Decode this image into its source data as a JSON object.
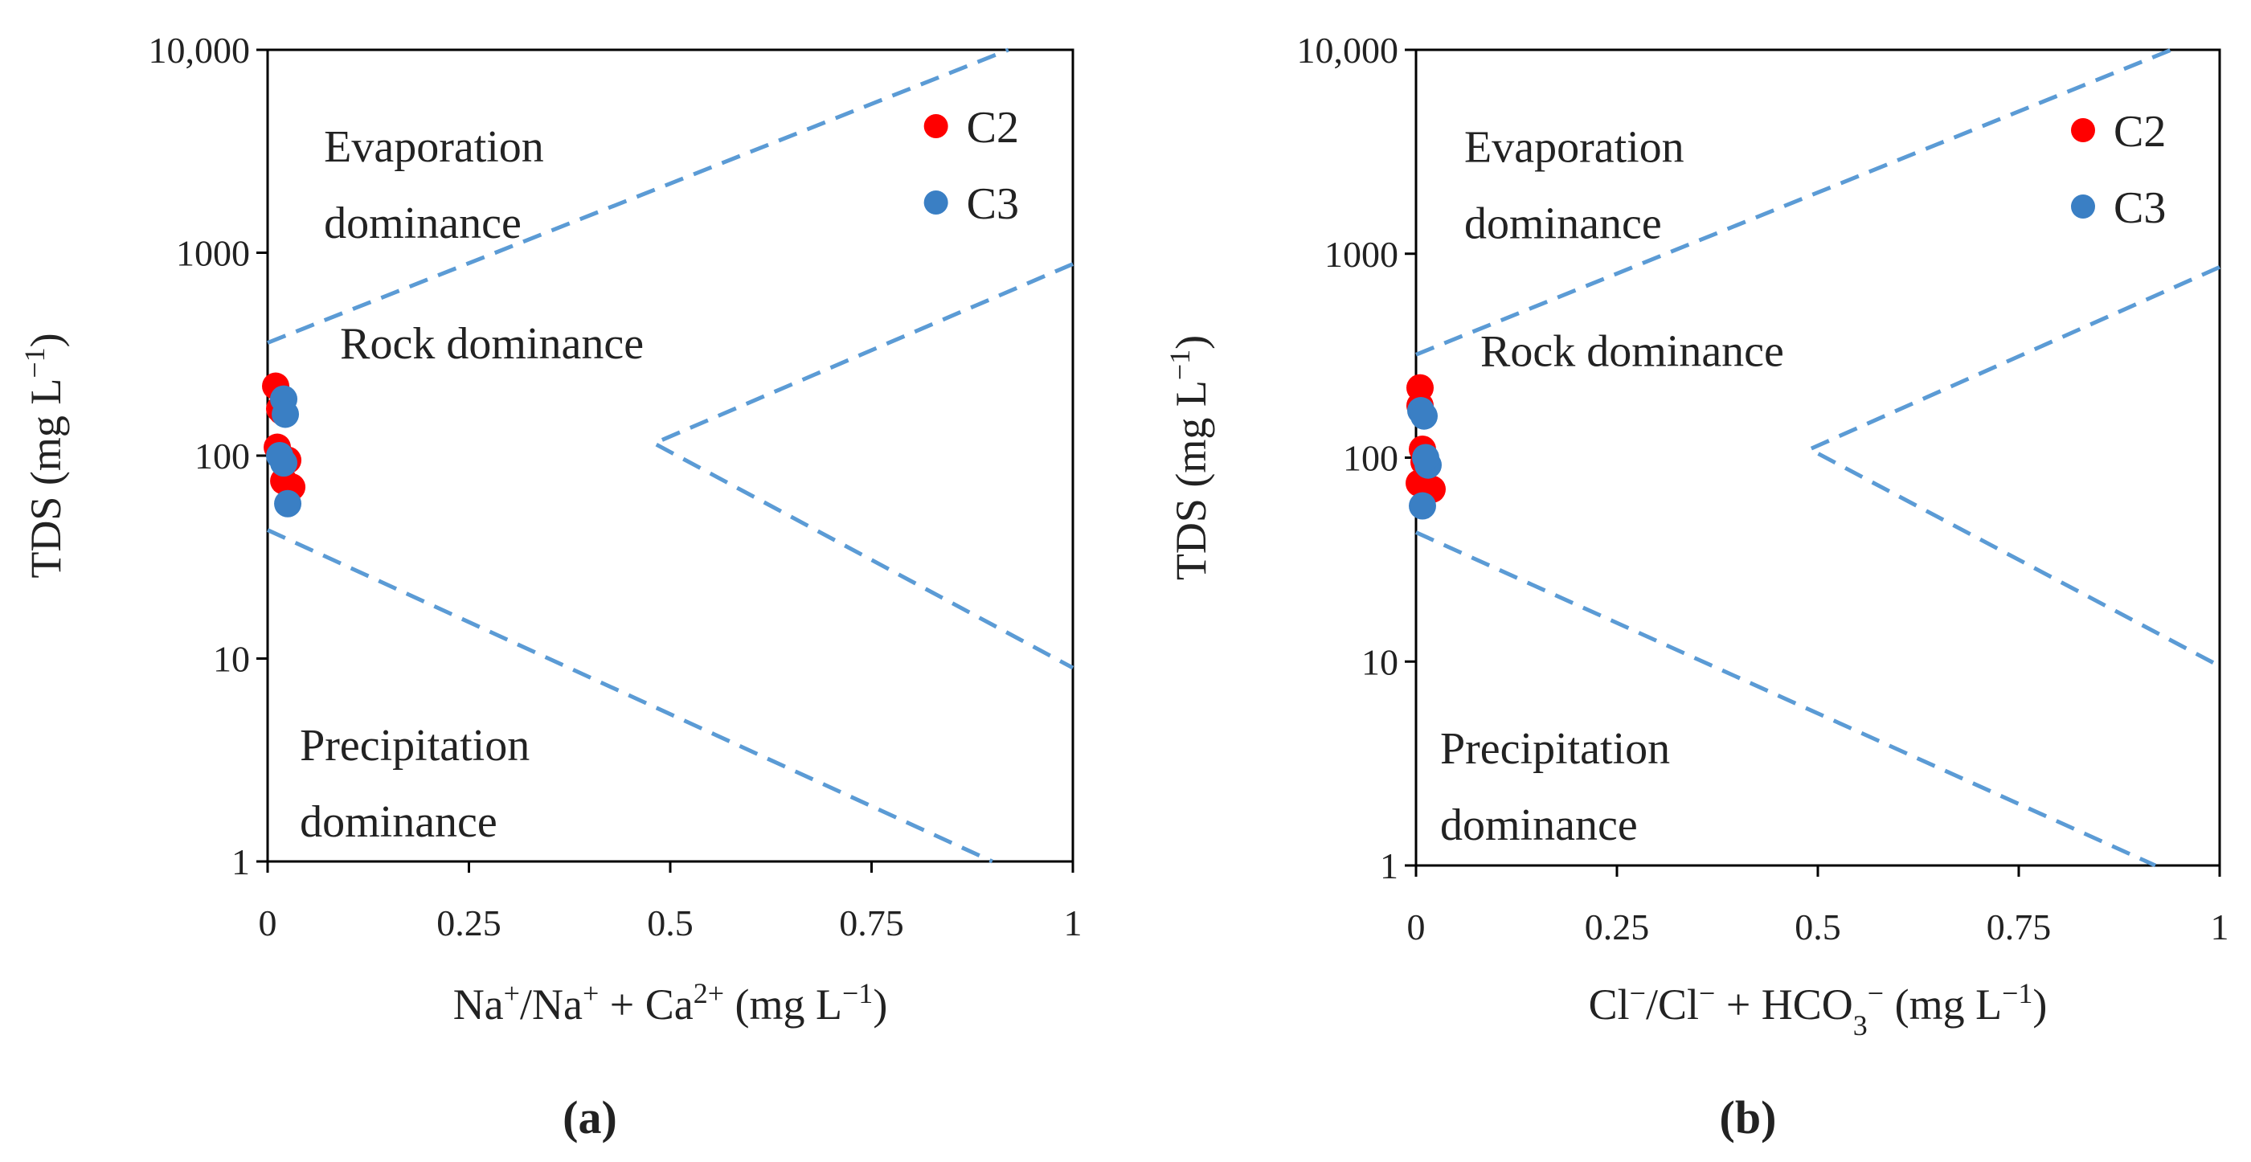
{
  "figure": {
    "colors": {
      "c2": "#ff0000",
      "c3": "#3a7fc4",
      "boundary": "#5b9bd5",
      "axis": "#000000"
    }
  },
  "chart_data": [
    {
      "type": "scatter",
      "panel_label": "(a)",
      "xlabel": {
        "pre": "Na",
        "sup1": "+",
        "mid": "/Na",
        "sup2": "+",
        "mid2": " + Ca",
        "sup3": "2+",
        "unit": " (mg L",
        "unit_sup": "−1",
        "close": ")"
      },
      "ylabel": {
        "text": "TDS (mg L",
        "sup": "−1",
        "close": ")"
      },
      "x_range": [
        0,
        1
      ],
      "y_range": [
        1,
        10000
      ],
      "y_scale": "log",
      "x_ticks": [
        "0",
        "0.25",
        "0.5",
        "0.75",
        "1"
      ],
      "x_tick_values": [
        0,
        0.25,
        0.5,
        0.75,
        1
      ],
      "y_ticks": [
        "1",
        "10",
        "100",
        "1000",
        "10,000"
      ],
      "y_tick_values": [
        1,
        10,
        100,
        1000,
        10000
      ],
      "regions": [
        {
          "line1": "Evaporation",
          "line2": "dominance",
          "x": 0.07,
          "y_log": 3.45
        },
        {
          "line1": "Rock dominance",
          "line2": "",
          "x": 0.09,
          "y_log": 2.48
        },
        {
          "line1": "Precipitation",
          "line2": "dominance",
          "x": 0.04,
          "y_log": 0.5
        }
      ],
      "boundaries": [
        {
          "name": "upper-boundary",
          "points": [
            [
              0,
              360
            ],
            [
              0.92,
              10000
            ]
          ]
        },
        {
          "name": "lower-boundary",
          "points": [
            [
              0,
              43
            ],
            [
              0.9,
              1
            ]
          ]
        },
        {
          "name": "rock-right-boundary",
          "points": [
            [
              1,
              880
            ],
            [
              0.48,
              115
            ],
            [
              1,
              9
            ]
          ]
        }
      ],
      "series": [
        {
          "name": "C2",
          "color": "#ff0000",
          "points": [
            [
              0.01,
              220
            ],
            [
              0.015,
              170
            ],
            [
              0.012,
              110
            ],
            [
              0.02,
              75
            ],
            [
              0.03,
              70
            ],
            [
              0.025,
              95
            ],
            [
              0.018,
              165
            ]
          ]
        },
        {
          "name": "C3",
          "color": "#3a7fc4",
          "points": [
            [
              0.02,
              190
            ],
            [
              0.022,
              160
            ],
            [
              0.015,
              100
            ],
            [
              0.02,
              92
            ],
            [
              0.025,
              58
            ]
          ]
        }
      ],
      "legend": [
        "C2",
        "C3"
      ]
    },
    {
      "type": "scatter",
      "panel_label": "(b)",
      "xlabel": {
        "pre": "Cl",
        "sup1": "−",
        "mid": "/Cl",
        "sup2": "−",
        "mid2": " + HCO",
        "sub": "3",
        "sup3": "−",
        "unit": " (mg L",
        "unit_sup": "−1",
        "close": ")"
      },
      "ylabel": {
        "text": "TDS (mg L",
        "sup": "−1",
        "close": ")"
      },
      "x_range": [
        0,
        1
      ],
      "y_range": [
        1,
        10000
      ],
      "y_scale": "log",
      "x_ticks": [
        "0",
        "0.25",
        "0.5",
        "0.75",
        "1"
      ],
      "x_tick_values": [
        0,
        0.25,
        0.5,
        0.75,
        1
      ],
      "y_ticks": [
        "1",
        "10",
        "100",
        "1000",
        "10,000"
      ],
      "y_tick_values": [
        1,
        10,
        100,
        1000,
        10000
      ],
      "regions": [
        {
          "line1": "Evaporation",
          "line2": "dominance",
          "x": 0.06,
          "y_log": 3.45
        },
        {
          "line1": "Rock dominance",
          "line2": "",
          "x": 0.08,
          "y_log": 2.45
        },
        {
          "line1": "Precipitation",
          "line2": "dominance",
          "x": 0.03,
          "y_log": 0.5
        }
      ],
      "boundaries": [
        {
          "name": "upper-boundary",
          "points": [
            [
              0,
              320
            ],
            [
              0.94,
              10000
            ]
          ]
        },
        {
          "name": "lower-boundary",
          "points": [
            [
              0,
              43
            ],
            [
              0.92,
              1
            ]
          ]
        },
        {
          "name": "rock-right-boundary",
          "points": [
            [
              1,
              860
            ],
            [
              0.49,
              110
            ],
            [
              1,
              9.5
            ]
          ]
        }
      ],
      "series": [
        {
          "name": "C2",
          "color": "#ff0000",
          "points": [
            [
              0.005,
              220
            ],
            [
              0.005,
              180
            ],
            [
              0.008,
              110
            ],
            [
              0.004,
              75
            ],
            [
              0.02,
              70
            ],
            [
              0.01,
              95
            ]
          ]
        },
        {
          "name": "C3",
          "color": "#3a7fc4",
          "points": [
            [
              0.006,
              170
            ],
            [
              0.01,
              160
            ],
            [
              0.015,
              92
            ],
            [
              0.008,
              58
            ],
            [
              0.012,
              100
            ]
          ]
        }
      ],
      "legend": [
        "C2",
        "C3"
      ]
    }
  ]
}
